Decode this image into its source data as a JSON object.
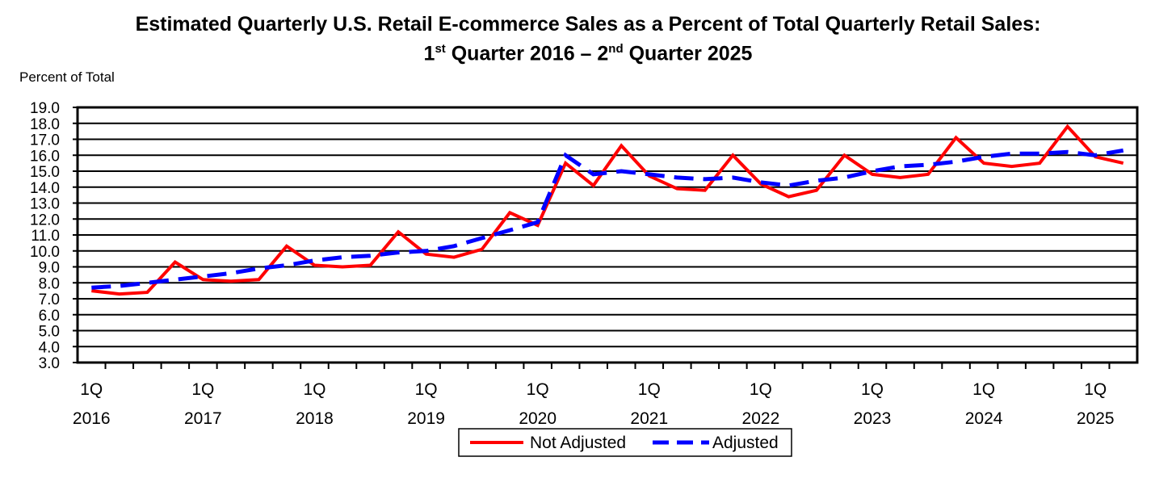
{
  "chart_data": {
    "type": "line",
    "title_line1": "Estimated Quarterly U.S. Retail E-commerce Sales as a Percent of Total Quarterly Retail Sales:",
    "title_line2_parts": [
      "1",
      "st",
      " Quarter 2016 – 2",
      "nd",
      " Quarter 2025"
    ],
    "ylabel": "Percent of Total",
    "ylim": [
      3.0,
      19.0
    ],
    "ytick_step": 1.0,
    "yticks": [
      "3.0",
      "4.0",
      "5.0",
      "6.0",
      "7.0",
      "8.0",
      "9.0",
      "10.0",
      "11.0",
      "12.0",
      "13.0",
      "14.0",
      "15.0",
      "16.0",
      "17.0",
      "18.0",
      "19.0"
    ],
    "x_labels": [
      {
        "quarter": "1Q",
        "year": "2016"
      },
      {
        "quarter": "1Q",
        "year": "2017"
      },
      {
        "quarter": "1Q",
        "year": "2018"
      },
      {
        "quarter": "1Q",
        "year": "2019"
      },
      {
        "quarter": "1Q",
        "year": "2020"
      },
      {
        "quarter": "1Q",
        "year": "2021"
      },
      {
        "quarter": "1Q",
        "year": "2022"
      },
      {
        "quarter": "1Q",
        "year": "2023"
      },
      {
        "quarter": "1Q",
        "year": "2024"
      },
      {
        "quarter": "1Q",
        "year": "2025"
      }
    ],
    "num_quarters": 38,
    "series": [
      {
        "name": "Not Adjusted",
        "color": "#ff0000",
        "style": "solid",
        "values": [
          7.5,
          7.3,
          7.4,
          9.3,
          8.2,
          8.1,
          8.2,
          10.3,
          9.1,
          9.0,
          9.1,
          11.2,
          9.8,
          9.6,
          10.1,
          12.4,
          11.6,
          15.5,
          14.1,
          16.6,
          14.7,
          13.9,
          13.8,
          16.0,
          14.2,
          13.4,
          13.8,
          16.0,
          14.8,
          14.6,
          14.8,
          17.1,
          15.5,
          15.3,
          15.5,
          17.8,
          15.9,
          15.5
        ]
      },
      {
        "name": "Adjusted",
        "color": "#0000ff",
        "style": "dashed",
        "values": [
          7.7,
          7.8,
          8.0,
          8.2,
          8.4,
          8.6,
          8.9,
          9.1,
          9.4,
          9.6,
          9.7,
          9.9,
          10.0,
          10.3,
          10.8,
          11.3,
          11.8,
          16.0,
          14.8,
          15.0,
          14.8,
          14.6,
          14.5,
          14.6,
          14.3,
          14.1,
          14.4,
          14.6,
          15.0,
          15.3,
          15.4,
          15.6,
          15.9,
          16.1,
          16.1,
          16.2,
          16.0,
          16.3
        ]
      }
    ],
    "legend_position": "bottom-center",
    "grid": true
  }
}
